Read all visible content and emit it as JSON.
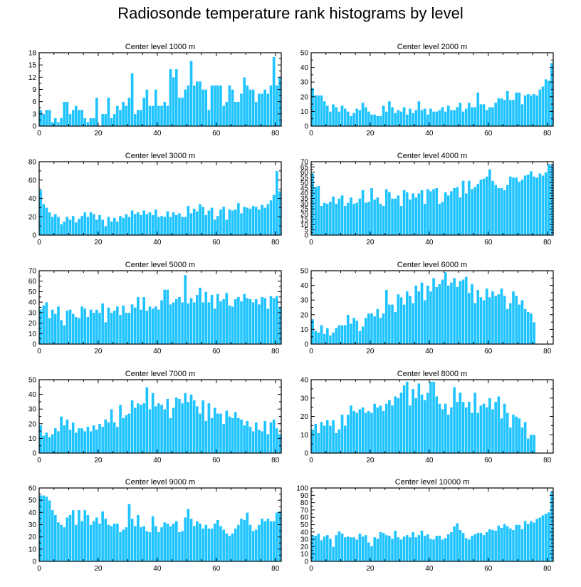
{
  "title": "Radiosonde temperature rank histograms by level",
  "colors": {
    "bar": "#1ec3ff",
    "bar_stroke": "#ffffff",
    "axis": "#000000"
  },
  "chart_data": [
    {
      "type": "bar",
      "title": "Center level 1000 m",
      "xlim": [
        0,
        82
      ],
      "xticks": [
        0,
        20,
        40,
        60,
        80
      ],
      "ylim": [
        0,
        18
      ],
      "yticks": [
        0,
        3,
        6,
        9,
        12,
        15,
        18
      ],
      "values": [
        4,
        3,
        4,
        4,
        1,
        2,
        1,
        2,
        6,
        6,
        3,
        4,
        5,
        4,
        4,
        2,
        1,
        2,
        2,
        7,
        0,
        3,
        3,
        7,
        2,
        3,
        5,
        4,
        6,
        5,
        7,
        13,
        3,
        4,
        4,
        7,
        9,
        5,
        5,
        9,
        5,
        5,
        6,
        5,
        14,
        12,
        14,
        7,
        7,
        9,
        10,
        16,
        10,
        11,
        11,
        9,
        9,
        4,
        10,
        10,
        10,
        10,
        5,
        6,
        10,
        9,
        6,
        6,
        8,
        12,
        10,
        9,
        9,
        6,
        8,
        8,
        9,
        8,
        10,
        17,
        10,
        12
      ]
    },
    {
      "type": "bar",
      "title": "Center level 2000 m",
      "xlim": [
        0,
        82
      ],
      "xticks": [
        0,
        20,
        40,
        60,
        80
      ],
      "ylim": [
        0,
        50
      ],
      "yticks": [
        0,
        10,
        20,
        30,
        40,
        50
      ],
      "values": [
        26,
        21,
        21,
        21,
        17,
        14,
        10,
        15,
        13,
        10,
        14,
        12,
        10,
        7,
        9,
        12,
        11,
        16,
        13,
        10,
        8,
        8,
        7,
        7,
        14,
        10,
        17,
        13,
        9,
        11,
        10,
        13,
        8,
        12,
        9,
        11,
        17,
        11,
        12,
        8,
        12,
        10,
        10,
        11,
        13,
        10,
        14,
        11,
        11,
        13,
        16,
        10,
        12,
        16,
        13,
        13,
        23,
        15,
        15,
        11,
        13,
        13,
        16,
        19,
        19,
        18,
        24,
        18,
        18,
        23,
        23,
        15,
        21,
        22,
        21,
        22,
        21,
        25,
        27,
        32,
        31,
        43
      ]
    },
    {
      "type": "bar",
      "title": "Center level 3000 m",
      "xlim": [
        0,
        82
      ],
      "xticks": [
        0,
        20,
        40,
        60,
        80
      ],
      "ylim": [
        0,
        80
      ],
      "yticks": [
        0,
        20,
        40,
        60,
        80
      ],
      "values": [
        49,
        34,
        30,
        25,
        20,
        23,
        20,
        12,
        15,
        20,
        17,
        21,
        14,
        18,
        21,
        25,
        20,
        25,
        23,
        17,
        22,
        17,
        10,
        20,
        15,
        19,
        15,
        21,
        19,
        23,
        20,
        27,
        23,
        25,
        22,
        27,
        23,
        25,
        22,
        28,
        20,
        21,
        20,
        26,
        20,
        25,
        22,
        24,
        20,
        20,
        32,
        24,
        29,
        26,
        34,
        31,
        22,
        27,
        30,
        17,
        21,
        28,
        31,
        17,
        28,
        27,
        28,
        35,
        24,
        31,
        30,
        29,
        32,
        31,
        28,
        33,
        30,
        34,
        38,
        44,
        70,
        48
      ]
    },
    {
      "type": "bar",
      "title": "Center level 4000 m",
      "xlim": [
        0,
        82
      ],
      "xticks": [
        0,
        20,
        40,
        60,
        80
      ],
      "ylim": [
        0,
        70
      ],
      "yticks": [
        0,
        5,
        10,
        15,
        20,
        25,
        30,
        35,
        40,
        45,
        50,
        55,
        60,
        65,
        70
      ],
      "values": [
        59,
        46,
        47,
        28,
        31,
        30,
        32,
        37,
        30,
        35,
        38,
        28,
        31,
        36,
        30,
        31,
        35,
        43,
        31,
        32,
        45,
        34,
        36,
        30,
        28,
        44,
        41,
        35,
        35,
        38,
        28,
        43,
        41,
        34,
        40,
        36,
        40,
        43,
        30,
        44,
        42,
        44,
        45,
        30,
        32,
        41,
        38,
        42,
        45,
        46,
        36,
        52,
        40,
        52,
        44,
        46,
        49,
        53,
        54,
        56,
        63,
        52,
        48,
        45,
        45,
        43,
        48,
        56,
        55,
        55,
        51,
        53,
        57,
        58,
        61,
        56,
        55,
        59,
        57,
        60,
        68,
        67
      ]
    },
    {
      "type": "bar",
      "title": "Center level 5000 m",
      "xlim": [
        0,
        82
      ],
      "xticks": [
        0,
        20,
        40,
        60,
        80
      ],
      "ylim": [
        0,
        70
      ],
      "yticks": [
        0,
        10,
        20,
        30,
        40,
        50,
        60,
        70
      ],
      "values": [
        33,
        37,
        40,
        25,
        33,
        29,
        36,
        23,
        18,
        32,
        33,
        29,
        26,
        25,
        36,
        34,
        26,
        33,
        30,
        33,
        30,
        39,
        21,
        35,
        30,
        32,
        36,
        28,
        37,
        30,
        30,
        38,
        35,
        45,
        33,
        45,
        32,
        36,
        34,
        36,
        33,
        42,
        52,
        52,
        38,
        40,
        43,
        45,
        40,
        66,
        39,
        44,
        40,
        47,
        54,
        40,
        50,
        40,
        47,
        34,
        48,
        41,
        43,
        49,
        37,
        36,
        43,
        45,
        41,
        48,
        44,
        43,
        40,
        43,
        38,
        45,
        44,
        34,
        46,
        44,
        46,
        35
      ]
    },
    {
      "type": "bar",
      "title": "Center level 6000 m",
      "xlim": [
        0,
        82
      ],
      "xticks": [
        0,
        20,
        40,
        60,
        80
      ],
      "ylim": [
        0,
        50
      ],
      "yticks": [
        0,
        10,
        20,
        30,
        40,
        50
      ],
      "values": [
        17,
        9,
        8,
        13,
        7,
        11,
        6,
        8,
        11,
        13,
        13,
        13,
        20,
        14,
        18,
        16,
        9,
        12,
        18,
        21,
        21,
        19,
        24,
        18,
        21,
        37,
        27,
        27,
        22,
        34,
        32,
        27,
        36,
        33,
        28,
        40,
        36,
        42,
        30,
        40,
        36,
        45,
        39,
        41,
        44,
        49,
        40,
        42,
        45,
        39,
        43,
        44,
        46,
        35,
        41,
        28,
        37,
        32,
        30,
        38,
        32,
        36,
        33,
        34,
        38,
        33,
        24,
        28,
        36,
        33,
        27,
        30,
        24,
        22,
        21,
        15
      ]
    },
    {
      "type": "bar",
      "title": "Center level 7000 m",
      "xlim": [
        0,
        82
      ],
      "xticks": [
        0,
        20,
        40,
        60,
        80
      ],
      "ylim": [
        0,
        50
      ],
      "yticks": [
        0,
        10,
        20,
        30,
        40,
        50
      ],
      "values": [
        19,
        12,
        14,
        11,
        13,
        17,
        15,
        25,
        19,
        23,
        16,
        21,
        14,
        17,
        17,
        15,
        18,
        15,
        19,
        16,
        20,
        18,
        23,
        21,
        30,
        21,
        18,
        33,
        24,
        26,
        27,
        36,
        31,
        34,
        33,
        34,
        45,
        30,
        41,
        32,
        34,
        33,
        30,
        37,
        24,
        31,
        38,
        37,
        34,
        41,
        35,
        40,
        36,
        32,
        27,
        36,
        22,
        34,
        24,
        31,
        27,
        27,
        20,
        29,
        25,
        24,
        28,
        24,
        23,
        19,
        22,
        18,
        15,
        21,
        16,
        15,
        22,
        13,
        21,
        23,
        17,
        13
      ]
    },
    {
      "type": "bar",
      "title": "Center level 8000 m",
      "xlim": [
        0,
        82
      ],
      "xticks": [
        0,
        20,
        40,
        60,
        80
      ],
      "ylim": [
        0,
        40
      ],
      "yticks": [
        0,
        10,
        20,
        30,
        40
      ],
      "values": [
        13,
        16,
        11,
        17,
        15,
        18,
        15,
        18,
        11,
        13,
        21,
        15,
        21,
        26,
        23,
        22,
        24,
        25,
        22,
        23,
        22,
        27,
        25,
        26,
        23,
        27,
        29,
        26,
        31,
        30,
        33,
        37,
        39,
        26,
        35,
        30,
        38,
        32,
        29,
        33,
        39,
        39,
        31,
        27,
        24,
        27,
        21,
        25,
        36,
        28,
        33,
        28,
        25,
        28,
        22,
        33,
        22,
        26,
        27,
        25,
        30,
        24,
        28,
        31,
        19,
        27,
        22,
        14,
        21,
        20,
        19,
        14,
        17,
        8,
        10,
        10
      ]
    },
    {
      "type": "bar",
      "title": "Center level 9000 m",
      "xlim": [
        0,
        82
      ],
      "xticks": [
        0,
        20,
        40,
        60,
        80
      ],
      "ylim": [
        0,
        60
      ],
      "yticks": [
        0,
        10,
        20,
        30,
        40,
        50,
        60
      ],
      "values": [
        54,
        54,
        53,
        50,
        42,
        38,
        32,
        30,
        28,
        36,
        38,
        42,
        30,
        42,
        33,
        42,
        38,
        30,
        33,
        36,
        31,
        41,
        35,
        30,
        29,
        31,
        31,
        24,
        26,
        28,
        47,
        35,
        29,
        38,
        28,
        29,
        25,
        24,
        37,
        29,
        24,
        28,
        32,
        31,
        29,
        31,
        33,
        24,
        25,
        36,
        43,
        35,
        29,
        33,
        31,
        27,
        30,
        27,
        27,
        31,
        34,
        29,
        26,
        23,
        21,
        23,
        27,
        30,
        35,
        34,
        40,
        30,
        25,
        26,
        30,
        35,
        33,
        35,
        33,
        33,
        40,
        41
      ]
    },
    {
      "type": "bar",
      "title": "Center level 10000 m",
      "xlim": [
        0,
        82
      ],
      "xticks": [
        0,
        20,
        40,
        60,
        80
      ],
      "ylim": [
        0,
        100
      ],
      "yticks": [
        0,
        10,
        20,
        30,
        40,
        50,
        60,
        70,
        80,
        90,
        100
      ],
      "values": [
        36,
        35,
        38,
        29,
        34,
        36,
        31,
        20,
        36,
        41,
        38,
        33,
        34,
        33,
        33,
        30,
        38,
        34,
        36,
        26,
        21,
        33,
        31,
        40,
        39,
        36,
        35,
        31,
        42,
        33,
        30,
        34,
        36,
        33,
        40,
        33,
        36,
        42,
        35,
        37,
        31,
        30,
        35,
        35,
        30,
        32,
        37,
        40,
        48,
        52,
        43,
        39,
        32,
        30,
        35,
        37,
        39,
        39,
        36,
        40,
        44,
        43,
        42,
        49,
        46,
        51,
        48,
        45,
        43,
        50,
        50,
        44,
        55,
        51,
        55,
        53,
        58,
        60,
        63,
        65,
        67,
        95
      ]
    }
  ]
}
